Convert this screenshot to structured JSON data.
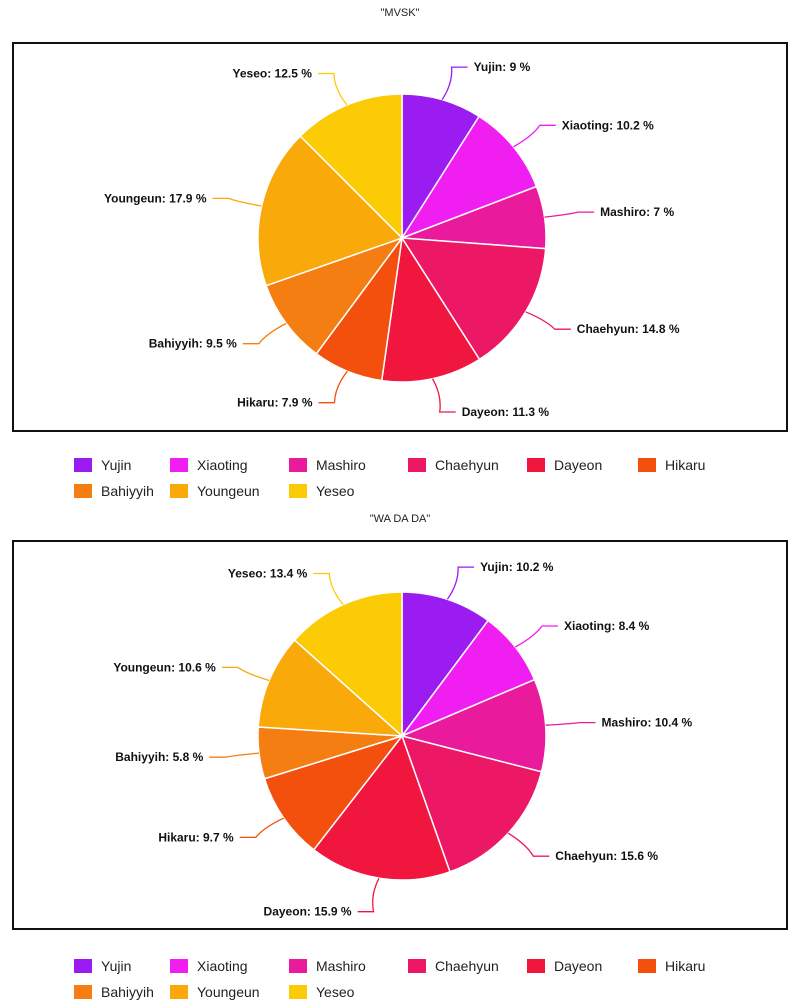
{
  "colors": {
    "Yujin": "#9b1cf0",
    "Xiaoting": "#f01ef0",
    "Mashiro": "#ea1a9c",
    "Chaehyun": "#ec1866",
    "Dayeon": "#f0163e",
    "Hikaru": "#f2500c",
    "Bahiyyih": "#f57e12",
    "Youngeun": "#f9a90a",
    "Yeseo": "#fbcb06"
  },
  "chart_data": [
    {
      "type": "pie",
      "title": "\"MVSK\"",
      "categories": [
        "Yujin",
        "Xiaoting",
        "Mashiro",
        "Chaehyun",
        "Dayeon",
        "Hikaru",
        "Bahiyyih",
        "Youngeun",
        "Yeseo"
      ],
      "values": [
        9,
        10.2,
        7,
        14.8,
        11.3,
        7.9,
        9.5,
        17.9,
        12.5
      ],
      "data_labels": [
        "Yujin: 9 %",
        "Xiaoting: 10.2 %",
        "Mashiro: 7 %",
        "Chaehyun: 14.8 %",
        "Dayeon: 11.3 %",
        "Hikaru: 7.9 %",
        "Bahiyyih: 9.5 %",
        "Youngeun: 17.9 %",
        "Yeseo: 12.5 %"
      ],
      "legend_placement": "bottom"
    },
    {
      "type": "pie",
      "title": "\"WA DA DA\"",
      "categories": [
        "Yujin",
        "Xiaoting",
        "Mashiro",
        "Chaehyun",
        "Dayeon",
        "Hikaru",
        "Bahiyyih",
        "Youngeun",
        "Yeseo"
      ],
      "values": [
        10.2,
        8.4,
        10.4,
        15.6,
        15.9,
        9.7,
        5.8,
        10.6,
        13.4
      ],
      "data_labels": [
        "Yujin: 10.2 %",
        "Xiaoting: 8.4 %",
        "Mashiro: 10.4 %",
        "Chaehyun: 15.6 %",
        "Dayeon: 15.9 %",
        "Hikaru: 9.7 %",
        "Bahiyyih: 5.8 %",
        "Youngeun: 10.6 %",
        "Yeseo: 13.4 %"
      ],
      "legend_placement": "bottom"
    }
  ]
}
